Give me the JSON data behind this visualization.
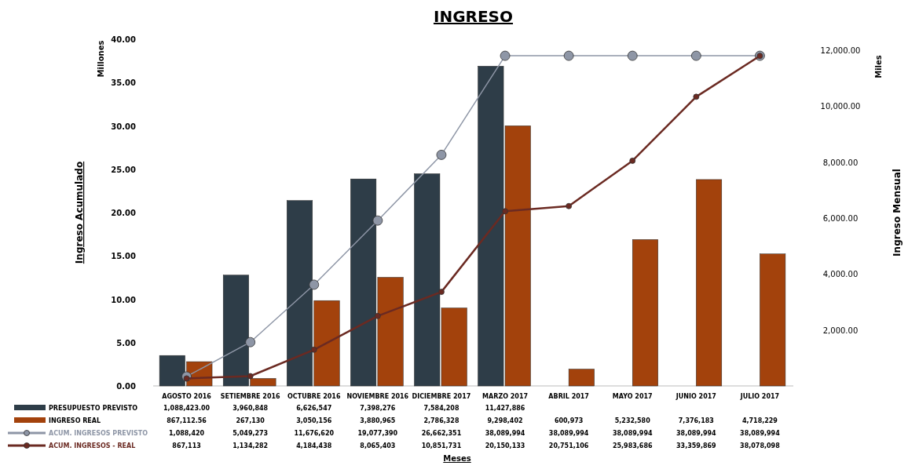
{
  "chart_data": {
    "type": "bar",
    "title": "INGRESO",
    "ylabel": "Ingreso Acumulado",
    "y2label": "Ingreso Mensual",
    "annotations": [
      "Millones",
      "Miles",
      "Meses",
      "1,088,423.00",
      "3,960,848",
      "6,626,547",
      "7,398,276",
      "7,584,208",
      "11,427,886",
      "867,112.56",
      "267,130",
      "3,050,156",
      "3,880,965",
      "2,786,328",
      "9,298,402",
      "600,973",
      "5,232,580",
      "7,376,183",
      "4,718,229",
      "1,088,420",
      "5,049,273",
      "11,676,620",
      "19,077,390",
      "26,662,351",
      "38,089,994",
      "38,089,994",
      "38,089,994",
      "38,089,994",
      "38,089,994",
      "867,113",
      "1,134,282",
      "4,184,438",
      "8,065,403",
      "10,851,731",
      "20,150,133",
      "20,751,106",
      "25,983,686",
      "33,359,869",
      "38,078,098"
    ],
    "categories": [
      "AGOSTO 2016",
      "SETIEMBRE 2016",
      "OCTUBRE 2016",
      "NOVIEMBRE 2016",
      "DICIEMBRE 2017",
      "MARZO 2017",
      "ABRIL 2017",
      "MAYO 2017",
      "JUNIO 2017",
      "JULIO 2017"
    ],
    "ylim": [
      0,
      40
    ],
    "yticks": [
      {
        "value": 0,
        "label": "0.00"
      },
      {
        "value": 5,
        "label": "5.00"
      },
      {
        "value": 10,
        "label": "10.00"
      },
      {
        "value": 15,
        "label": "15.00"
      },
      {
        "value": 20,
        "label": "20.00"
      },
      {
        "value": 25,
        "label": "25.00"
      },
      {
        "value": 30,
        "label": "30.00"
      },
      {
        "value": 35,
        "label": "35.00"
      },
      {
        "value": 40,
        "label": "40.00"
      }
    ],
    "y2lim": [
      0,
      12000
    ],
    "y2ticks": [
      {
        "value": 2000,
        "label": "2,000.00"
      },
      {
        "value": 4000,
        "label": "4,000.00"
      },
      {
        "value": 6000,
        "label": "6,000.00"
      },
      {
        "value": 8000,
        "label": "8,000.00"
      },
      {
        "value": 10000,
        "label": "10,000.00"
      },
      {
        "value": 12000,
        "label": "12,000.00"
      }
    ],
    "series": [
      {
        "name": "PRESUPUESTO PREVISTO",
        "axis": "y2",
        "color": "#2e3d48",
        "values": [
          1088.4,
          3960.8,
          6626.5,
          7398.3,
          7584.2,
          11427.9,
          null,
          null,
          null,
          null
        ]
      },
      {
        "name": "INGRESO REAL",
        "axis": "y2",
        "color": "#a3420c",
        "values": [
          867.1,
          267.1,
          3050.2,
          3881,
          2786.3,
          9298.4,
          601,
          5232.6,
          7376.2,
          4718.2
        ]
      },
      {
        "name": "ACUM. INGRESOS PREVISTO",
        "type": "line",
        "axis": "y",
        "color": "#8e96a6",
        "values": [
          1.09,
          5.05,
          11.68,
          19.08,
          26.66,
          38.09,
          38.09,
          38.09,
          38.09,
          38.09
        ]
      },
      {
        "name": "ACUM. INGRESOS - REAL",
        "type": "line",
        "axis": "y",
        "color": "#6b2a22",
        "values": [
          0.87,
          1.13,
          4.18,
          8.07,
          10.85,
          20.15,
          20.75,
          25.98,
          33.36,
          38.08
        ]
      }
    ],
    "marker": "circle",
    "legend": "bottom"
  }
}
